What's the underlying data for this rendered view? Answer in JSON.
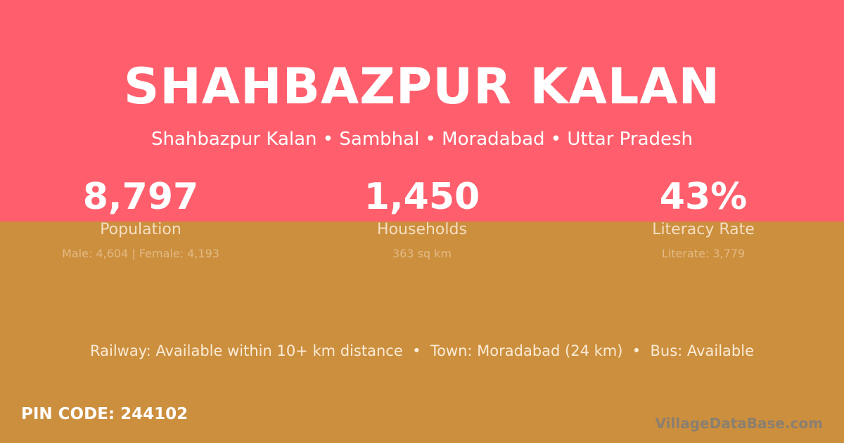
{
  "title": "SHAHBAZPUR KALAN",
  "breadcrumb": "Shahbazpur Kalan • Sambhal • Moradabad • Uttar Pradesh",
  "stats": [
    {
      "value": "8,797",
      "label": "Population",
      "detail": "Male: 4,604 | Female: 4,193"
    },
    {
      "value": "1,450",
      "label": "Households",
      "detail": "363 sq km"
    },
    {
      "value": "43%",
      "label": "Literacy Rate",
      "detail": "Literate: 3,779"
    }
  ],
  "transport": "Railway: Available within 10+ km distance  •  Town: Moradabad (24 km)  •  Bus: Available",
  "pin": "PIN CODE: 244102",
  "logo": "VillageDataBase.com",
  "colors": {
    "top": "#FF5F6D",
    "bottom": "#CC8F3E"
  }
}
